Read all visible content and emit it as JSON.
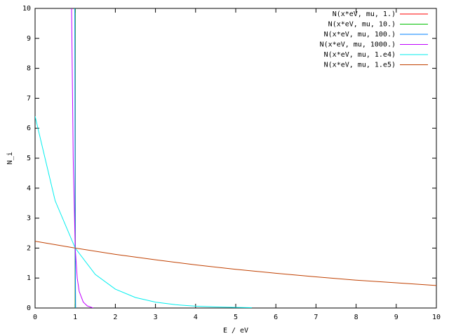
{
  "chart_data": {
    "type": "line",
    "xlabel": "E / eV",
    "ylabel": "N_i",
    "xlim": [
      0,
      10
    ],
    "ylim": [
      0,
      10
    ],
    "xticks": [
      0,
      1,
      2,
      3,
      4,
      5,
      6,
      7,
      8,
      9,
      10
    ],
    "yticks": [
      0,
      1,
      2,
      3,
      4,
      5,
      6,
      7,
      8,
      9,
      10
    ],
    "grid": false,
    "legend": "top-right",
    "series": [
      {
        "name": "N(x*eV, mu, 1.)",
        "color": "#ff0000",
        "x": [
          1.0,
          1.0
        ],
        "values": [
          10,
          0
        ]
      },
      {
        "name": "N(x*eV, mu, 10.)",
        "color": "#00c000",
        "x": [
          1.0,
          1.0,
          1.0
        ],
        "values": [
          10,
          2,
          0
        ]
      },
      {
        "name": "N(x*eV, mu, 100.)",
        "color": "#0080ff",
        "x": [
          0.99,
          1.0,
          1.01
        ],
        "values": [
          10,
          2,
          0
        ]
      },
      {
        "name": "N(x*eV, mu, 1000.)",
        "color": "#c000ff",
        "x": [
          0.91,
          0.95,
          1.0,
          1.05,
          1.1,
          1.2,
          1.3,
          1.45
        ],
        "values": [
          10,
          5,
          2,
          1.0,
          0.55,
          0.2,
          0.07,
          0
        ]
      },
      {
        "name": "N(x*eV, mu, 1.e4)",
        "color": "#00eeee",
        "x": [
          0,
          0.5,
          1,
          1.5,
          2,
          2.5,
          3,
          3.5,
          4,
          4.5,
          5,
          5.4
        ],
        "values": [
          6.4,
          3.58,
          2.0,
          1.12,
          0.63,
          0.35,
          0.196,
          0.11,
          0.061,
          0.034,
          0.019,
          0.012
        ]
      },
      {
        "name": "N(x*eV, mu, 1.e5)",
        "color": "#c04000",
        "x": [
          0,
          1,
          2,
          3,
          4,
          5,
          6,
          7,
          8,
          9,
          10
        ],
        "values": [
          2.23,
          2.0,
          1.79,
          1.61,
          1.44,
          1.29,
          1.16,
          1.04,
          0.93,
          0.84,
          0.75
        ]
      }
    ]
  }
}
